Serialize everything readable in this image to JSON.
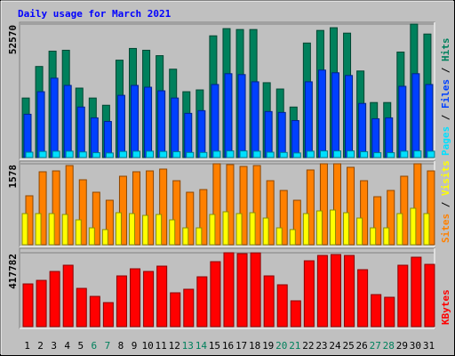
{
  "chart_data": [
    {
      "type": "bar",
      "title": "Daily usage for March 2021",
      "categories": [
        "1",
        "2",
        "3",
        "4",
        "5",
        "6",
        "7",
        "8",
        "9",
        "10",
        "11",
        "12",
        "13",
        "14",
        "15",
        "16",
        "17",
        "18",
        "19",
        "20",
        "21",
        "22",
        "23",
        "24",
        "25",
        "26",
        "27",
        "28",
        "29",
        "30",
        "31"
      ],
      "x_label_colors": [
        "#000000",
        "#000000",
        "#000000",
        "#000000",
        "#000000",
        "#00805c",
        "#00805c",
        "#000000",
        "#000000",
        "#000000",
        "#000000",
        "#000000",
        "#00805c",
        "#00805c",
        "#000000",
        "#000000",
        "#000000",
        "#000000",
        "#000000",
        "#00805c",
        "#00805c",
        "#000000",
        "#000000",
        "#000000",
        "#000000",
        "#000000",
        "#00805c",
        "#00805c",
        "#000000",
        "#000000",
        "#000000"
      ],
      "legend_separator": " / ",
      "series": [
        {
          "name": "Pages",
          "color": "#00e0ff",
          "values": [
            2100,
            2400,
            2500,
            2500,
            2200,
            1900,
            1800,
            2400,
            2500,
            2500,
            2400,
            2300,
            2000,
            2000,
            2500,
            2600,
            2600,
            2500,
            2100,
            2000,
            1800,
            2500,
            2600,
            2600,
            2600,
            2300,
            1900,
            1900,
            2500,
            2600,
            2500
          ]
        },
        {
          "name": "Files",
          "color": "#0040ff",
          "values": [
            17040,
            25915,
            31240,
            28400,
            19880,
            15620,
            14200,
            24495,
            28400,
            27690,
            26270,
            23430,
            17395,
            18460,
            28755,
            33015,
            32660,
            29820,
            18105,
            17750,
            14555,
            29820,
            34435,
            33370,
            32305,
            21300,
            15265,
            15620,
            28045,
            33015,
            28755
          ]
        },
        {
          "name": "Hits",
          "color": "#00805c",
          "values": [
            23430,
            35855,
            41890,
            42245,
            27335,
            23430,
            20590,
            38340,
            42955,
            42245,
            40115,
            34790,
            25915,
            26625,
            47925,
            50765,
            50410,
            50410,
            29465,
            26980,
            19880,
            45085,
            50055,
            51120,
            48990,
            34080,
            21655,
            21655,
            41535,
            52540,
            48635
          ]
        }
      ],
      "ylim": [
        0,
        52570
      ],
      "yticks": [
        52570
      ],
      "grid": true
    },
    {
      "type": "bar",
      "series": [
        {
          "name": "Sites",
          "color": "#ff8000",
          "values": [
            954,
            1422,
            1439,
            1543,
            1266,
            1023,
            867,
            1335,
            1422,
            1439,
            1474,
            1248,
            1023,
            1075,
            1578,
            1561,
            1526,
            1543,
            1248,
            1058,
            867,
            1457,
            1578,
            1578,
            1509,
            1248,
            936,
            1058,
            1335,
            1578,
            1439
          ]
        },
        {
          "name": "Visits",
          "color": "#ffff00",
          "values": [
            607,
            607,
            607,
            590,
            485,
            329,
            295,
            624,
            607,
            572,
            590,
            485,
            329,
            329,
            590,
            642,
            607,
            624,
            520,
            329,
            295,
            607,
            659,
            676,
            624,
            520,
            329,
            329,
            607,
            711,
            607
          ]
        }
      ],
      "ylim": [
        0,
        1578
      ],
      "yticks": [
        1578
      ],
      "grid": true
    },
    {
      "type": "bar",
      "series": [
        {
          "name": "KBytes",
          "color": "#ff0000",
          "values": [
            241600,
            261700,
            312000,
            347300,
            216400,
            171100,
            135900,
            286900,
            327100,
            312000,
            342200,
            191300,
            211400,
            281800,
            367400,
            417782,
            412700,
            417000,
            286900,
            236600,
            146000,
            372400,
            402600,
            407700,
            402600,
            322100,
            181200,
            166100,
            347300,
            392600,
            352300
          ]
        }
      ],
      "ylim": [
        0,
        417782
      ],
      "yticks": [
        417782
      ],
      "grid": true
    }
  ]
}
